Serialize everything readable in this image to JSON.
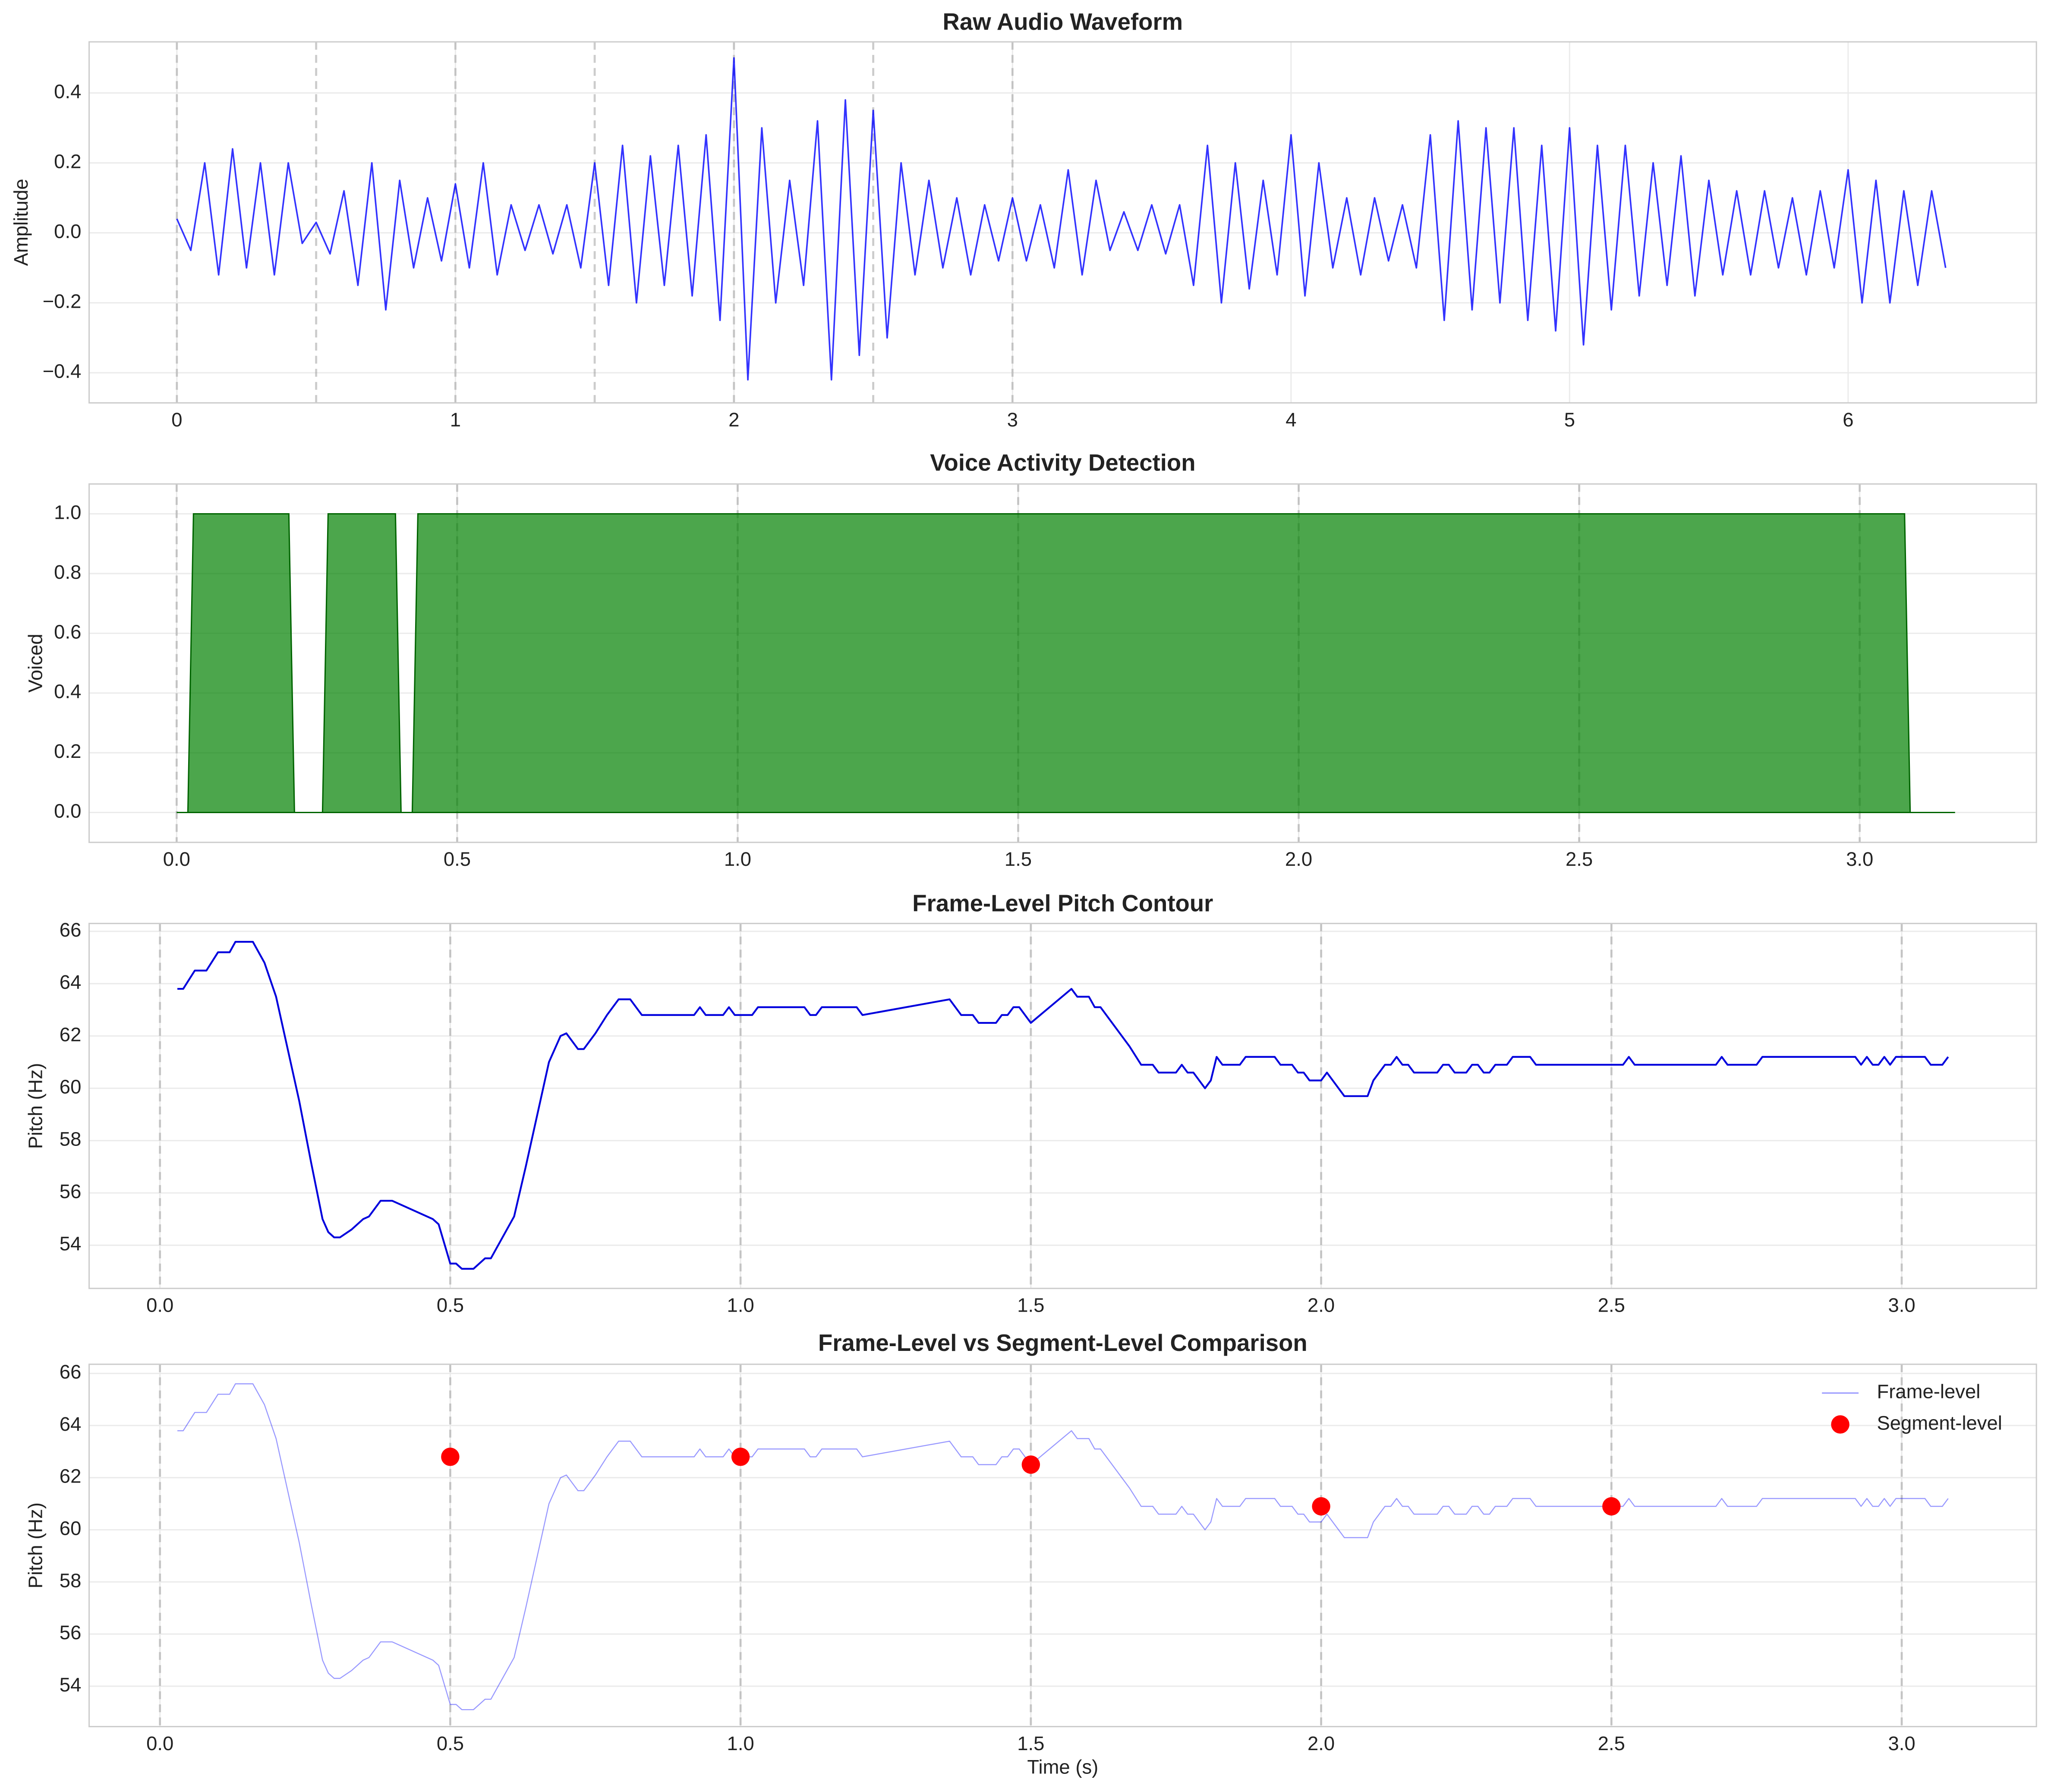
{
  "chart_data": [
    {
      "type": "line",
      "title": "Raw Audio Waveform",
      "ylabel": "Amplitude",
      "grid": true,
      "xlim": [
        -0.315,
        6.676
      ],
      "ylim": [
        -0.486,
        0.546
      ],
      "xticks": [
        0,
        1,
        2,
        3,
        4,
        5,
        6
      ],
      "yticks": [
        {
          "value": -0.4,
          "label": "−0.4"
        },
        {
          "value": -0.2,
          "label": "−0.2"
        },
        {
          "value": 0,
          "label": "0.0"
        },
        {
          "value": 0.2,
          "label": "0.2"
        },
        {
          "value": 0.4,
          "label": "0.4"
        }
      ],
      "vlines": [
        0,
        0.5,
        1,
        1.5,
        2,
        2.5,
        3
      ],
      "series": [
        {
          "color": "#0000ff",
          "alpha": 0.8,
          "x": [
            0,
            0.05,
            0.1,
            0.15,
            0.2,
            0.25,
            0.3,
            0.35,
            0.4,
            0.45,
            0.5,
            0.55,
            0.6,
            0.65,
            0.7,
            0.75,
            0.8,
            0.85,
            0.9,
            0.95,
            1,
            1.05,
            1.1,
            1.15,
            1.2,
            1.25,
            1.3,
            1.35,
            1.4,
            1.45,
            1.5,
            1.55,
            1.6,
            1.65,
            1.7,
            1.75,
            1.8,
            1.85,
            1.9,
            1.95,
            2,
            2.05,
            2.1,
            2.15,
            2.2,
            2.25,
            2.3,
            2.35,
            2.4,
            2.45,
            2.5,
            2.55,
            2.6,
            2.65,
            2.7,
            2.75,
            2.8,
            2.85,
            2.9,
            2.95,
            3,
            3.05,
            3.1,
            3.15,
            3.2,
            3.25,
            3.3,
            3.35,
            3.4,
            3.45,
            3.5,
            3.55,
            3.6,
            3.65,
            3.7,
            3.75,
            3.8,
            3.85,
            3.9,
            3.95,
            4,
            4.05,
            4.1,
            4.15,
            4.2,
            4.25,
            4.3,
            4.35,
            4.4,
            4.45,
            4.5,
            4.55,
            4.6,
            4.65,
            4.7,
            4.75,
            4.8,
            4.85,
            4.9,
            4.95,
            5,
            5.05,
            5.1,
            5.15,
            5.2,
            5.25,
            5.3,
            5.35,
            5.4,
            5.45,
            5.5,
            5.55,
            5.6,
            5.65,
            5.7,
            5.75,
            5.8,
            5.85,
            5.9,
            5.95,
            6,
            6.05,
            6.1,
            6.15,
            6.2,
            6.25,
            6.3,
            6.35
          ],
          "values": [
            0.04,
            -0.05,
            0.2,
            -0.12,
            0.24,
            -0.1,
            0.2,
            -0.12,
            0.2,
            -0.03,
            0.03,
            -0.06,
            0.12,
            -0.15,
            0.2,
            -0.22,
            0.15,
            -0.1,
            0.1,
            -0.08,
            0.14,
            -0.1,
            0.2,
            -0.12,
            0.08,
            -0.05,
            0.08,
            -0.06,
            0.08,
            -0.1,
            0.2,
            -0.15,
            0.25,
            -0.2,
            0.22,
            -0.15,
            0.25,
            -0.18,
            0.28,
            -0.25,
            0.5,
            -0.42,
            0.3,
            -0.2,
            0.15,
            -0.15,
            0.32,
            -0.42,
            0.38,
            -0.35,
            0.35,
            -0.3,
            0.2,
            -0.12,
            0.15,
            -0.1,
            0.1,
            -0.12,
            0.08,
            -0.08,
            0.1,
            -0.08,
            0.08,
            -0.1,
            0.18,
            -0.12,
            0.15,
            -0.05,
            0.06,
            -0.05,
            0.08,
            -0.06,
            0.08,
            -0.15,
            0.25,
            -0.2,
            0.2,
            -0.16,
            0.15,
            -0.12,
            0.28,
            -0.18,
            0.2,
            -0.1,
            0.1,
            -0.12,
            0.1,
            -0.08,
            0.08,
            -0.1,
            0.28,
            -0.25,
            0.32,
            -0.22,
            0.3,
            -0.2,
            0.3,
            -0.25,
            0.25,
            -0.28,
            0.3,
            -0.32,
            0.25,
            -0.22,
            0.25,
            -0.18,
            0.2,
            -0.15,
            0.22,
            -0.18,
            0.15,
            -0.12,
            0.12,
            -0.12,
            0.12,
            -0.1,
            0.1,
            -0.12,
            0.12,
            -0.1,
            0.18,
            -0.2,
            0.15,
            -0.2,
            0.12,
            -0.15,
            0.12,
            -0.1
          ]
        }
      ]
    },
    {
      "type": "area",
      "title": "Voice Activity Detection",
      "ylabel": "Voiced",
      "grid": true,
      "xlim": [
        -0.156,
        3.315
      ],
      "ylim": [
        -0.1,
        1.1
      ],
      "xticks": [
        {
          "value": 0,
          "label": "0.0"
        },
        0.5,
        {
          "value": 1,
          "label": "1.0"
        },
        1.5,
        {
          "value": 2,
          "label": "2.0"
        },
        2.5,
        {
          "value": 3,
          "label": "3.0"
        }
      ],
      "yticks": [
        {
          "value": 0,
          "label": "0.0"
        },
        0.2,
        0.4,
        0.6,
        0.8,
        {
          "value": 1,
          "label": "1.0"
        }
      ],
      "vlines": [
        0,
        0.5,
        1,
        1.5,
        2,
        2.5,
        3
      ],
      "series": [
        {
          "color": "#008000",
          "alpha": 0.7,
          "x": [
            0,
            0.02,
            0.03,
            0.2,
            0.21,
            0.26,
            0.27,
            0.39,
            0.4,
            0.42,
            0.43,
            3.08,
            3.09,
            3.17
          ],
          "values": [
            0,
            0,
            1,
            1,
            0,
            0,
            1,
            1,
            0,
            0,
            1,
            1,
            0,
            0
          ]
        }
      ]
    },
    {
      "type": "line",
      "title": "Frame-Level Pitch Contour",
      "ylabel": "Pitch (Hz)",
      "grid": true,
      "xlim": [
        -0.122,
        3.232
      ],
      "ylim": [
        52.35,
        66.3
      ],
      "xticks": [
        {
          "value": 0,
          "label": "0.0"
        },
        0.5,
        {
          "value": 1,
          "label": "1.0"
        },
        1.5,
        {
          "value": 2,
          "label": "2.0"
        },
        2.5,
        {
          "value": 3,
          "label": "3.0"
        }
      ],
      "yticks": [
        54,
        56,
        58,
        60,
        62,
        64,
        66
      ],
      "vlines": [
        0,
        0.5,
        1,
        1.5,
        2,
        2.5,
        3
      ],
      "series": [
        {
          "color": "#0000dd",
          "alpha": 1,
          "x": [
            0.03,
            0.04,
            0.06,
            0.08,
            0.1,
            0.12,
            0.13,
            0.16,
            0.18,
            0.2,
            0.22,
            0.24,
            0.26,
            0.28,
            0.29,
            0.3,
            0.31,
            0.33,
            0.35,
            0.36,
            0.38,
            0.4,
            0.47,
            0.48,
            0.5,
            0.51,
            0.52,
            0.54,
            0.56,
            0.57,
            0.59,
            0.61,
            0.63,
            0.65,
            0.67,
            0.69,
            0.7,
            0.72,
            0.73,
            0.75,
            0.77,
            0.79,
            0.81,
            0.83,
            0.92,
            0.93,
            0.94,
            0.97,
            0.98,
            0.99,
            1.02,
            1.03,
            1.11,
            1.12,
            1.13,
            1.14,
            1.2,
            1.21,
            1.36,
            1.38,
            1.4,
            1.41,
            1.44,
            1.45,
            1.46,
            1.47,
            1.48,
            1.5,
            1.57,
            1.58,
            1.6,
            1.61,
            1.62,
            1.64,
            1.67,
            1.69,
            1.71,
            1.72,
            1.75,
            1.76,
            1.77,
            1.78,
            1.8,
            1.81,
            1.82,
            1.83,
            1.86,
            1.87,
            1.92,
            1.93,
            1.95,
            1.96,
            1.97,
            1.98,
            2,
            2.01,
            2.03,
            2.04,
            2.08,
            2.09,
            2.11,
            2.12,
            2.13,
            2.14,
            2.15,
            2.16,
            2.2,
            2.21,
            2.22,
            2.23,
            2.25,
            2.26,
            2.27,
            2.28,
            2.29,
            2.3,
            2.32,
            2.33,
            2.36,
            2.37,
            2.52,
            2.53,
            2.54,
            2.68,
            2.69,
            2.7,
            2.75,
            2.76,
            2.92,
            2.93,
            2.94,
            2.95,
            2.96,
            2.97,
            2.98,
            2.99,
            3.04,
            3.05,
            3.07,
            3.08
          ],
          "values": [
            63.8,
            63.8,
            64.5,
            64.5,
            65.2,
            65.2,
            65.6,
            65.6,
            64.8,
            63.5,
            61.5,
            59.5,
            57.2,
            55,
            54.5,
            54.3,
            54.3,
            54.6,
            55,
            55.1,
            55.7,
            55.7,
            55,
            54.8,
            53.3,
            53.3,
            53.1,
            53.1,
            53.5,
            53.5,
            54.3,
            55.1,
            57,
            59,
            61,
            62,
            62.1,
            61.5,
            61.5,
            62.1,
            62.8,
            63.4,
            63.4,
            62.8,
            62.8,
            63.1,
            62.8,
            62.8,
            63.1,
            62.8,
            62.8,
            63.1,
            63.1,
            62.8,
            62.8,
            63.1,
            63.1,
            62.8,
            63.4,
            62.8,
            62.8,
            62.5,
            62.5,
            62.8,
            62.8,
            63.1,
            63.1,
            62.5,
            63.8,
            63.5,
            63.5,
            63.1,
            63.1,
            62.5,
            61.6,
            60.9,
            60.9,
            60.6,
            60.6,
            60.9,
            60.6,
            60.6,
            60,
            60.3,
            61.2,
            60.9,
            60.9,
            61.2,
            61.2,
            60.9,
            60.9,
            60.6,
            60.6,
            60.3,
            60.3,
            60.6,
            60,
            59.7,
            59.7,
            60.3,
            60.9,
            60.9,
            61.2,
            60.9,
            60.9,
            60.6,
            60.6,
            60.9,
            60.9,
            60.6,
            60.6,
            60.9,
            60.9,
            60.6,
            60.6,
            60.9,
            60.9,
            61.2,
            61.2,
            60.9,
            60.9,
            61.2,
            60.9,
            60.9,
            61.2,
            60.9,
            60.9,
            61.2,
            61.2,
            60.9,
            61.2,
            60.9,
            60.9,
            61.2,
            60.9,
            61.2,
            61.2,
            60.9,
            60.9,
            61.2
          ]
        }
      ]
    },
    {
      "type": "line",
      "title": "Frame-Level vs Segment-Level Comparison",
      "ylabel": "Pitch (Hz)",
      "xlabel": "Time (s)",
      "grid": true,
      "legend": "upper right",
      "xlim": [
        -0.122,
        3.232
      ],
      "ylim": [
        52.45,
        66.35
      ],
      "xticks": [
        {
          "value": 0,
          "label": "0.0"
        },
        0.5,
        {
          "value": 1,
          "label": "1.0"
        },
        1.5,
        {
          "value": 2,
          "label": "2.0"
        },
        2.5,
        {
          "value": 3,
          "label": "3.0"
        }
      ],
      "yticks": [
        54,
        56,
        58,
        60,
        62,
        64,
        66
      ],
      "vlines": [
        0,
        0.5,
        1,
        1.5,
        2,
        2.5,
        3
      ],
      "series": [
        {
          "name": "Frame-level",
          "type": "line",
          "color": "#0000ff",
          "alpha": 0.4,
          "x": [
            0.03,
            0.04,
            0.06,
            0.08,
            0.1,
            0.12,
            0.13,
            0.16,
            0.18,
            0.2,
            0.22,
            0.24,
            0.26,
            0.28,
            0.29,
            0.3,
            0.31,
            0.33,
            0.35,
            0.36,
            0.38,
            0.4,
            0.47,
            0.48,
            0.5,
            0.51,
            0.52,
            0.54,
            0.56,
            0.57,
            0.59,
            0.61,
            0.63,
            0.65,
            0.67,
            0.69,
            0.7,
            0.72,
            0.73,
            0.75,
            0.77,
            0.79,
            0.81,
            0.83,
            0.92,
            0.93,
            0.94,
            0.97,
            0.98,
            0.99,
            1.02,
            1.03,
            1.11,
            1.12,
            1.13,
            1.14,
            1.2,
            1.21,
            1.36,
            1.38,
            1.4,
            1.41,
            1.44,
            1.45,
            1.46,
            1.47,
            1.48,
            1.5,
            1.57,
            1.58,
            1.6,
            1.61,
            1.62,
            1.64,
            1.67,
            1.69,
            1.71,
            1.72,
            1.75,
            1.76,
            1.77,
            1.78,
            1.8,
            1.81,
            1.82,
            1.83,
            1.86,
            1.87,
            1.92,
            1.93,
            1.95,
            1.96,
            1.97,
            1.98,
            2,
            2.01,
            2.03,
            2.04,
            2.08,
            2.09,
            2.11,
            2.12,
            2.13,
            2.14,
            2.15,
            2.16,
            2.2,
            2.21,
            2.22,
            2.23,
            2.25,
            2.26,
            2.27,
            2.28,
            2.29,
            2.3,
            2.32,
            2.33,
            2.36,
            2.37,
            2.52,
            2.53,
            2.54,
            2.68,
            2.69,
            2.7,
            2.75,
            2.76,
            2.92,
            2.93,
            2.94,
            2.95,
            2.96,
            2.97,
            2.98,
            2.99,
            3.04,
            3.05,
            3.07,
            3.08
          ],
          "values": [
            63.8,
            63.8,
            64.5,
            64.5,
            65.2,
            65.2,
            65.6,
            65.6,
            64.8,
            63.5,
            61.5,
            59.5,
            57.2,
            55,
            54.5,
            54.3,
            54.3,
            54.6,
            55,
            55.1,
            55.7,
            55.7,
            55,
            54.8,
            53.3,
            53.3,
            53.1,
            53.1,
            53.5,
            53.5,
            54.3,
            55.1,
            57,
            59,
            61,
            62,
            62.1,
            61.5,
            61.5,
            62.1,
            62.8,
            63.4,
            63.4,
            62.8,
            62.8,
            63.1,
            62.8,
            62.8,
            63.1,
            62.8,
            62.8,
            63.1,
            63.1,
            62.8,
            62.8,
            63.1,
            63.1,
            62.8,
            63.4,
            62.8,
            62.8,
            62.5,
            62.5,
            62.8,
            62.8,
            63.1,
            63.1,
            62.5,
            63.8,
            63.5,
            63.5,
            63.1,
            63.1,
            62.5,
            61.6,
            60.9,
            60.9,
            60.6,
            60.6,
            60.9,
            60.6,
            60.6,
            60,
            60.3,
            61.2,
            60.9,
            60.9,
            61.2,
            61.2,
            60.9,
            60.9,
            60.6,
            60.6,
            60.3,
            60.3,
            60.6,
            60,
            59.7,
            59.7,
            60.3,
            60.9,
            60.9,
            61.2,
            60.9,
            60.9,
            60.6,
            60.6,
            60.9,
            60.9,
            60.6,
            60.6,
            60.9,
            60.9,
            60.6,
            60.6,
            60.9,
            60.9,
            61.2,
            61.2,
            60.9,
            60.9,
            61.2,
            60.9,
            60.9,
            61.2,
            60.9,
            60.9,
            61.2,
            61.2,
            60.9,
            61.2,
            60.9,
            60.9,
            61.2,
            60.9,
            61.2,
            61.2,
            60.9,
            60.9,
            61.2
          ]
        },
        {
          "name": "Segment-level",
          "type": "scatter",
          "color": "#ff0000",
          "alpha": 1,
          "x": [
            0.5,
            1,
            1.5,
            2,
            2.5
          ],
          "values": [
            62.8,
            62.8,
            62.5,
            60.9,
            60.9
          ]
        }
      ]
    }
  ]
}
